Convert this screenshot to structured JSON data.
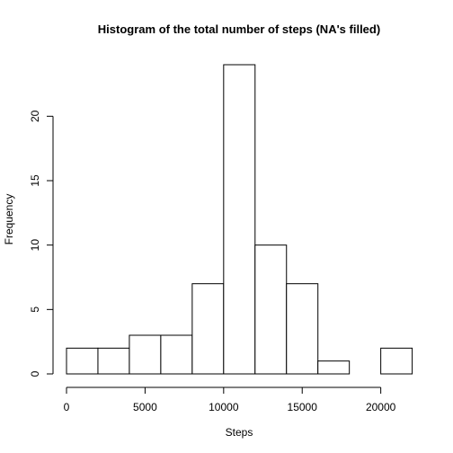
{
  "chart_data": {
    "type": "bar",
    "title": "Histogram of the total number of steps (NA's filled)",
    "xlabel": "Steps",
    "ylabel": "Frequency",
    "bins": [
      {
        "start": 0,
        "end": 2000,
        "count": 2
      },
      {
        "start": 2000,
        "end": 4000,
        "count": 2
      },
      {
        "start": 4000,
        "end": 6000,
        "count": 3
      },
      {
        "start": 6000,
        "end": 8000,
        "count": 3
      },
      {
        "start": 8000,
        "end": 10000,
        "count": 7
      },
      {
        "start": 10000,
        "end": 12000,
        "count": 24
      },
      {
        "start": 12000,
        "end": 14000,
        "count": 10
      },
      {
        "start": 14000,
        "end": 16000,
        "count": 7
      },
      {
        "start": 16000,
        "end": 18000,
        "count": 1
      },
      {
        "start": 18000,
        "end": 20000,
        "count": 0
      },
      {
        "start": 20000,
        "end": 22000,
        "count": 2
      }
    ],
    "xticks": [
      0,
      5000,
      10000,
      15000,
      20000
    ],
    "yticks": [
      0,
      5,
      10,
      15,
      20
    ],
    "xlim": [
      0,
      22000
    ],
    "ylim": [
      0,
      24
    ],
    "grid": false
  }
}
